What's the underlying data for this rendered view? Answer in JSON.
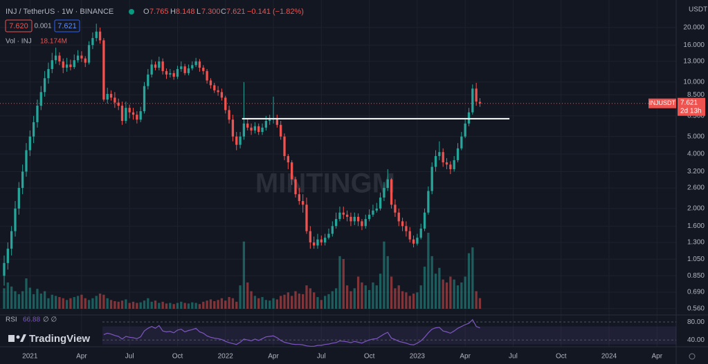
{
  "header": {
    "title": "INJ / TetherUS · 1W · BINANCE",
    "legend": {
      "o_key": "O",
      "o": "7.765",
      "h_key": "H",
      "h": "8.148",
      "l_key": "L",
      "l": "7.300",
      "c_key": "C",
      "c": "7.621",
      "change": "−0.141 (−1.82%)"
    },
    "bid": "7.620",
    "spread": "0.001",
    "ask": "7.621",
    "volume_title": "Vol · INJ",
    "volume_value_label": "18.174M",
    "rsi_title": "RSI",
    "rsi_value_label": "66.88",
    "rsi_extra": "∅ ∅",
    "currency": "USDT",
    "watermark": "MINTINGM",
    "logo": "TradingView"
  },
  "price_label": {
    "symbol": "INJUSDT",
    "price": "7.621",
    "countdown": "2d 13h"
  },
  "chart_data": {
    "type": "candlestick",
    "log": true,
    "grid": true,
    "up_color": "#26a69a",
    "down_color": "#ef5350",
    "ylim": [
      0.521,
      28.4
    ],
    "xlim": [
      -1.125,
      182.2
    ],
    "yticks": [
      {
        "value": 20,
        "label": "20.000"
      },
      {
        "value": 16,
        "label": "16.000"
      },
      {
        "value": 13,
        "label": "13.000"
      },
      {
        "value": 10,
        "label": "10.000"
      },
      {
        "value": 8.5,
        "label": "8.500"
      },
      {
        "value": 6.5,
        "label": "6.500"
      },
      {
        "value": 5,
        "label": "5.000"
      },
      {
        "value": 4,
        "label": "4.000"
      },
      {
        "value": 3.2,
        "label": "3.200"
      },
      {
        "value": 2.6,
        "label": "2.600"
      },
      {
        "value": 2,
        "label": "2.000"
      },
      {
        "value": 1.6,
        "label": "1.600"
      },
      {
        "value": 1.3,
        "label": "1.300"
      },
      {
        "value": 1.05,
        "label": "1.050"
      },
      {
        "value": 0.85,
        "label": "0.850"
      },
      {
        "value": 0.69,
        "label": "0.690"
      },
      {
        "value": 0.56,
        "label": "0.560"
      }
    ],
    "xticks": [
      {
        "value": 7,
        "label": "2021"
      },
      {
        "value": 21,
        "label": "Apr"
      },
      {
        "value": 34,
        "label": "Jul"
      },
      {
        "value": 47,
        "label": "Oct"
      },
      {
        "value": 60,
        "label": "2022"
      },
      {
        "value": 73,
        "label": "Apr"
      },
      {
        "value": 86,
        "label": "Jul"
      },
      {
        "value": 99,
        "label": "Oct"
      },
      {
        "value": 112,
        "label": "2023"
      },
      {
        "value": 125,
        "label": "Apr"
      },
      {
        "value": 138,
        "label": "Jul"
      },
      {
        "value": 151,
        "label": "Oct"
      },
      {
        "value": 164,
        "label": "2024"
      },
      {
        "value": 177,
        "label": "Apr"
      }
    ],
    "open": [
      0.85,
      1.0,
      1.2,
      1.5,
      2.0,
      2.6,
      3.2,
      4.2,
      5.0,
      6.0,
      7.4,
      8.8,
      10.5,
      11.8,
      13.2,
      14.0,
      13.0,
      12.0,
      12.5,
      12.1,
      13.2,
      14.0,
      13.5,
      12.8,
      16.0,
      17.5,
      19.0,
      17.0,
      8.0,
      8.6,
      8.2,
      7.7,
      7.4,
      6.1,
      7.2,
      6.8,
      6.6,
      6.2,
      6.9,
      9.5,
      11.0,
      12.5,
      12.0,
      13.0,
      11.5,
      11.0,
      11.2,
      10.7,
      11.8,
      12.2,
      11.2,
      11.9,
      12.4,
      13.0,
      12.0,
      11.5,
      10.2,
      9.6,
      9.0,
      8.8,
      8.2,
      7.0,
      6.2,
      5.0,
      4.5,
      5.0,
      5.9,
      5.6,
      5.4,
      5.7,
      5.3,
      5.6,
      6.1,
      6.2,
      6.3,
      5.8,
      5.0,
      3.9,
      3.6,
      2.9,
      2.4,
      2.2,
      2.1,
      1.5,
      1.3,
      1.25,
      1.35,
      1.3,
      1.38,
      1.45,
      1.6,
      1.75,
      1.9,
      1.85,
      1.8,
      1.7,
      1.8,
      1.7,
      1.6,
      1.75,
      1.85,
      1.95,
      2.0,
      2.3,
      2.6,
      2.9,
      2.1,
      1.9,
      1.7,
      1.6,
      1.5,
      1.35,
      1.28,
      1.38,
      1.55,
      1.9,
      2.5,
      3.4,
      3.9,
      4.1,
      3.6,
      3.5,
      3.3,
      3.7,
      4.3,
      5.0,
      5.9,
      6.8,
      9.2,
      7.765
    ],
    "high": [
      1.1,
      1.3,
      1.6,
      2.2,
      2.8,
      3.5,
      4.6,
      5.4,
      6.5,
      8.0,
      9.5,
      11.5,
      12.8,
      14.5,
      15.5,
      14.6,
      13.5,
      13.6,
      13.3,
      14.2,
      15.0,
      14.8,
      13.9,
      16.8,
      18.8,
      21.0,
      20.0,
      17.5,
      9.3,
      9.0,
      8.8,
      8.1,
      7.8,
      7.8,
      7.5,
      7.2,
      6.9,
      7.3,
      10.0,
      11.8,
      13.3,
      13.0,
      13.8,
      13.5,
      11.9,
      11.8,
      11.6,
      12.3,
      13.0,
      12.6,
      12.5,
      13.0,
      13.6,
      13.4,
      12.4,
      11.8,
      10.5,
      9.9,
      9.5,
      9.2,
      8.4,
      7.4,
      6.6,
      5.3,
      5.3,
      10.0,
      6.3,
      5.9,
      6.0,
      5.9,
      5.9,
      6.5,
      6.6,
      8.3,
      6.6,
      6.1,
      5.2,
      4.0,
      3.7,
      3.0,
      2.6,
      2.4,
      2.3,
      1.6,
      1.4,
      1.45,
      1.42,
      1.45,
      1.55,
      1.7,
      1.9,
      2.05,
      2.05,
      1.95,
      1.9,
      1.9,
      1.88,
      1.75,
      1.85,
      1.98,
      2.1,
      2.15,
      2.45,
      2.8,
      3.3,
      2.95,
      2.25,
      2.0,
      1.78,
      1.7,
      1.58,
      1.42,
      1.45,
      1.65,
      2.0,
      2.65,
      3.6,
      4.2,
      4.7,
      4.3,
      3.8,
      3.65,
      3.9,
      4.6,
      5.3,
      6.2,
      7.2,
      9.7,
      9.9,
      8.148
    ],
    "low": [
      0.75,
      0.92,
      1.1,
      1.4,
      1.85,
      2.4,
      3.0,
      3.9,
      4.6,
      5.6,
      7.0,
      8.3,
      9.8,
      11.2,
      12.6,
      12.4,
      11.2,
      11.4,
      11.6,
      11.8,
      12.8,
      12.9,
      12.1,
      12.5,
      15.2,
      16.8,
      16.3,
      7.8,
      7.6,
      7.9,
      7.2,
      7.0,
      5.8,
      5.9,
      6.3,
      6.2,
      5.9,
      6.0,
      6.7,
      9.1,
      10.6,
      11.6,
      11.6,
      11.0,
      10.4,
      10.6,
      10.3,
      10.4,
      11.4,
      10.9,
      10.9,
      11.6,
      12.1,
      11.4,
      11.0,
      9.8,
      9.2,
      8.7,
      8.4,
      7.9,
      6.7,
      5.9,
      4.7,
      4.2,
      4.3,
      4.8,
      5.4,
      5.1,
      5.2,
      5.1,
      5.1,
      5.4,
      5.8,
      5.9,
      5.6,
      4.8,
      3.7,
      3.3,
      2.7,
      2.3,
      2.1,
      1.9,
      1.45,
      1.2,
      1.2,
      1.2,
      1.25,
      1.25,
      1.35,
      1.4,
      1.55,
      1.7,
      1.75,
      1.7,
      1.6,
      1.62,
      1.6,
      1.52,
      1.55,
      1.7,
      1.8,
      1.9,
      1.95,
      2.2,
      2.5,
      2.0,
      1.8,
      1.6,
      1.5,
      1.4,
      1.3,
      1.22,
      1.25,
      1.35,
      1.5,
      1.85,
      2.4,
      3.2,
      3.7,
      3.4,
      3.3,
      3.1,
      3.2,
      3.6,
      4.2,
      4.9,
      5.7,
      6.6,
      7.4,
      7.3
    ],
    "close": [
      1.0,
      1.2,
      1.5,
      2.0,
      2.6,
      3.2,
      4.2,
      5.0,
      6.0,
      7.4,
      8.8,
      10.5,
      11.8,
      13.2,
      14.0,
      13.0,
      12.0,
      12.5,
      12.1,
      13.2,
      14.0,
      13.5,
      12.8,
      16.0,
      17.5,
      19.0,
      17.0,
      8.0,
      8.6,
      8.2,
      7.7,
      7.4,
      6.1,
      7.2,
      6.8,
      6.6,
      6.2,
      6.9,
      9.5,
      11.0,
      12.5,
      12.0,
      13.0,
      11.5,
      11.0,
      11.2,
      10.7,
      11.8,
      12.2,
      11.2,
      11.9,
      12.4,
      13.0,
      12.0,
      11.5,
      10.2,
      9.6,
      9.0,
      8.8,
      8.2,
      7.0,
      6.2,
      5.0,
      4.5,
      5.0,
      5.9,
      5.6,
      5.4,
      5.7,
      5.3,
      5.6,
      6.1,
      6.2,
      6.3,
      5.8,
      5.0,
      3.9,
      3.6,
      2.9,
      2.4,
      2.2,
      2.1,
      1.5,
      1.3,
      1.25,
      1.35,
      1.3,
      1.38,
      1.45,
      1.6,
      1.75,
      1.9,
      1.85,
      1.8,
      1.7,
      1.8,
      1.7,
      1.6,
      1.75,
      1.85,
      1.95,
      2.0,
      2.3,
      2.6,
      2.9,
      2.1,
      1.9,
      1.7,
      1.6,
      1.5,
      1.35,
      1.28,
      1.38,
      1.55,
      1.9,
      2.5,
      3.4,
      3.9,
      4.1,
      3.6,
      3.5,
      3.3,
      3.7,
      4.3,
      5.0,
      5.9,
      6.8,
      9.2,
      7.8,
      7.621
    ],
    "volume": [
      35,
      45,
      38,
      30,
      25,
      30,
      52,
      36,
      25,
      34,
      26,
      30,
      18,
      24,
      22,
      20,
      18,
      15,
      18,
      20,
      22,
      24,
      18,
      15,
      18,
      22,
      26,
      24,
      18,
      15,
      13,
      12,
      14,
      16,
      10,
      12,
      10,
      11,
      14,
      18,
      12,
      14,
      10,
      12,
      9,
      10,
      8,
      10,
      12,
      10,
      9,
      11,
      10,
      8,
      12,
      14,
      16,
      13,
      15,
      18,
      14,
      20,
      18,
      12,
      40,
      115,
      45,
      30,
      22,
      18,
      20,
      15,
      14,
      18,
      16,
      22,
      24,
      28,
      22,
      30,
      26,
      25,
      40,
      35,
      28,
      20,
      15,
      22,
      25,
      30,
      35,
      90,
      85,
      40,
      30,
      35,
      55,
      45,
      40,
      32,
      45,
      40,
      60,
      115,
      90,
      55,
      35,
      40,
      30,
      28,
      22,
      26,
      28,
      40,
      72,
      130,
      90,
      60,
      70,
      50,
      45,
      55,
      50,
      40,
      45,
      55,
      95,
      105,
      30,
      18.174
    ],
    "rsi": [
      null,
      null,
      null,
      null,
      null,
      null,
      null,
      null,
      null,
      null,
      null,
      null,
      null,
      null,
      null,
      null,
      null,
      null,
      null,
      null,
      null,
      null,
      null,
      null,
      null,
      null,
      null,
      52,
      55,
      53,
      50,
      48,
      42,
      48,
      46,
      45,
      43,
      47,
      60,
      66,
      70,
      66,
      72,
      60,
      58,
      59,
      56,
      62,
      64,
      58,
      61,
      63,
      66,
      58,
      55,
      49,
      46,
      44,
      43,
      41,
      37,
      34,
      32,
      30,
      35,
      42,
      40,
      38,
      42,
      39,
      43,
      47,
      48,
      49,
      45,
      39,
      35,
      33,
      31,
      30,
      30,
      29,
      27,
      26,
      26,
      28,
      28,
      30,
      31,
      33,
      34,
      38,
      37,
      36,
      34,
      37,
      35,
      33,
      37,
      40,
      42,
      43,
      48,
      53,
      57,
      44,
      41,
      37,
      35,
      33,
      30,
      29,
      33,
      38,
      46,
      56,
      64,
      67,
      68,
      60,
      58,
      55,
      60,
      66,
      70,
      74,
      77,
      85,
      70,
      66.88
    ],
    "rsi_color": "#7e57c2",
    "rsi_ylim": [
      25,
      94
    ],
    "rsi_ticks": [
      {
        "value": 80,
        "label": "80.00"
      },
      {
        "value": 40,
        "label": "40.00"
      }
    ],
    "rsi_band": [
      30,
      70
    ],
    "hline": {
      "price": 6.27,
      "x": [
        64.5,
        137
      ]
    },
    "last_price": 7.621
  }
}
